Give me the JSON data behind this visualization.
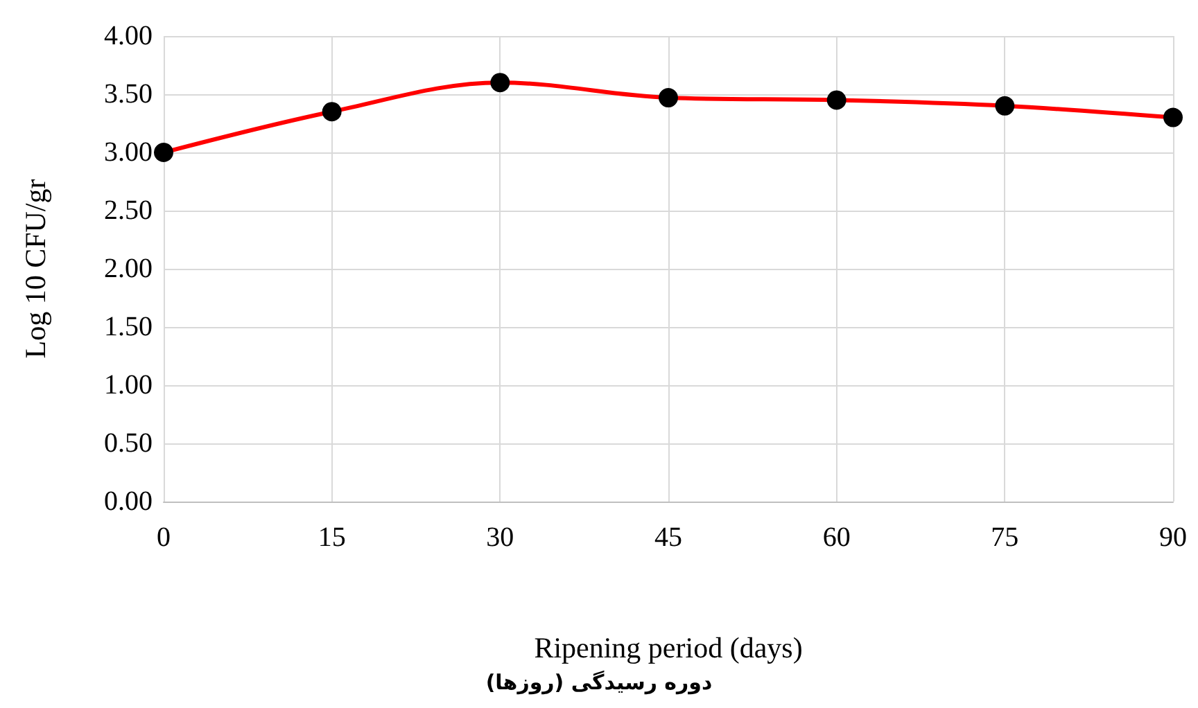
{
  "chart_data": {
    "type": "line",
    "xlabel": "Ripening period (days)",
    "ylabel": "Log 10 CFU/gr",
    "annotations": [
      "دوره رسیدگی (روزها)"
    ],
    "categories": [
      "0",
      "15",
      "30",
      "45",
      "60",
      "75",
      "90"
    ],
    "series": [
      {
        "color": "#ff0000",
        "values": [
          3.0,
          3.35,
          3.6,
          3.47,
          3.45,
          3.4,
          3.3
        ]
      }
    ],
    "ylim": [
      0,
      4
    ],
    "yticks": [
      {
        "value": 0,
        "label": "0.00"
      },
      {
        "value": 0.5,
        "label": "0.50"
      },
      {
        "value": 1,
        "label": "1.00"
      },
      {
        "value": 1.5,
        "label": "1.50"
      },
      {
        "value": 2,
        "label": "2.00"
      },
      {
        "value": 2.5,
        "label": "2.50"
      },
      {
        "value": 3,
        "label": "3.00"
      },
      {
        "value": 3.5,
        "label": "3.50"
      },
      {
        "value": 4,
        "label": "4.00"
      }
    ],
    "grid": true,
    "marker": "circle",
    "line_style": "solid"
  }
}
